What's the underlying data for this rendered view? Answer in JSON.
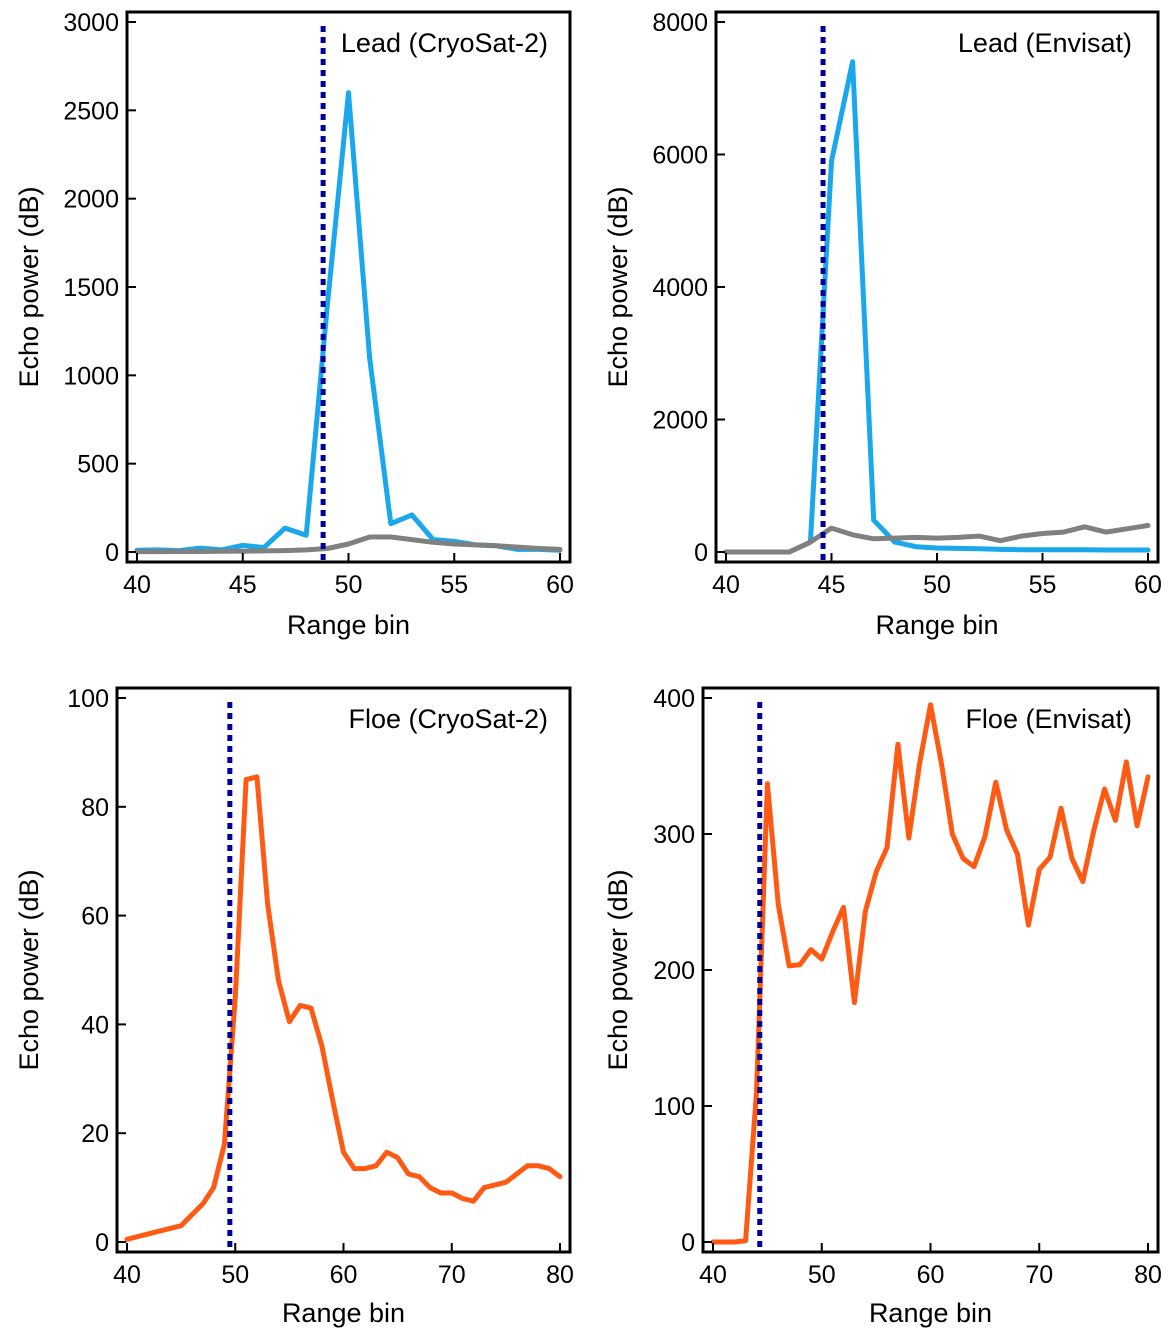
{
  "chart_data": [
    {
      "type": "line",
      "title": "Lead (CryoSat-2)",
      "xlabel": "Range bin",
      "ylabel": "Echo power (dB)",
      "xlim": [
        40,
        60
      ],
      "ylim": [
        0,
        3000
      ],
      "xticks": [
        40,
        45,
        50,
        55,
        60
      ],
      "yticks": [
        0,
        500,
        1000,
        1500,
        2000,
        2500,
        3000
      ],
      "reference_x": 48.8,
      "grid": false,
      "series": [
        {
          "color": "#1aa7ec",
          "x": [
            40,
            41,
            42,
            43,
            44,
            45,
            46,
            47,
            48,
            49,
            50,
            51,
            52,
            53,
            54,
            55,
            56,
            57,
            58,
            59,
            60
          ],
          "y": [
            10,
            12,
            8,
            22,
            12,
            38,
            25,
            135,
            95,
            1400,
            2600,
            1100,
            160,
            210,
            70,
            60,
            40,
            35,
            15,
            15,
            10
          ]
        },
        {
          "color": "#808080",
          "x": [
            40,
            41,
            42,
            43,
            44,
            45,
            46,
            47,
            48,
            49,
            50,
            51,
            52,
            53,
            54,
            55,
            56,
            57,
            58,
            59,
            60
          ],
          "y": [
            2,
            2,
            3,
            3,
            4,
            5,
            6,
            8,
            12,
            20,
            45,
            85,
            85,
            70,
            55,
            45,
            40,
            35,
            28,
            20,
            15
          ]
        }
      ]
    },
    {
      "type": "line",
      "title": "Lead (Envisat)",
      "xlabel": "Range bin",
      "ylabel": "Echo power (dB)",
      "xlim": [
        40,
        60
      ],
      "ylim": [
        0,
        8000
      ],
      "xticks": [
        40,
        45,
        50,
        55,
        60
      ],
      "yticks": [
        0,
        2000,
        4000,
        6000,
        8000
      ],
      "reference_x": 44.6,
      "grid": false,
      "series": [
        {
          "color": "#1aa7ec",
          "x": [
            40,
            41,
            42,
            43,
            44,
            45,
            46,
            47,
            48,
            49,
            50,
            51,
            52,
            53,
            54,
            55,
            56,
            57,
            58,
            59,
            60
          ],
          "y": [
            0,
            0,
            0,
            0,
            150,
            5900,
            7400,
            480,
            150,
            80,
            60,
            55,
            50,
            40,
            35,
            35,
            35,
            35,
            30,
            30,
            30
          ]
        },
        {
          "color": "#808080",
          "x": [
            40,
            41,
            42,
            43,
            44,
            45,
            46,
            47,
            48,
            49,
            50,
            51,
            52,
            53,
            54,
            55,
            56,
            57,
            58,
            59,
            60
          ],
          "y": [
            0,
            0,
            0,
            0,
            150,
            360,
            260,
            200,
            210,
            220,
            210,
            220,
            240,
            170,
            240,
            280,
            300,
            380,
            300,
            350,
            400
          ]
        }
      ]
    },
    {
      "type": "line",
      "title": "Floe (CryoSat-2)",
      "xlabel": "Range bin",
      "ylabel": "Echo power (dB)",
      "xlim": [
        40,
        80
      ],
      "ylim": [
        0,
        100
      ],
      "xticks": [
        40,
        50,
        60,
        70,
        80
      ],
      "yticks": [
        0,
        20,
        40,
        60,
        80,
        100
      ],
      "reference_x": 49.5,
      "grid": false,
      "series": [
        {
          "color": "#ff5a14",
          "x": [
            40,
            41,
            42,
            43,
            44,
            45,
            46,
            47,
            48,
            49,
            50,
            51,
            52,
            53,
            54,
            55,
            56,
            57,
            58,
            59,
            60,
            61,
            62,
            63,
            64,
            65,
            66,
            67,
            68,
            69,
            70,
            71,
            72,
            73,
            74,
            75,
            76,
            77,
            78,
            79,
            80
          ],
          "y": [
            0.5,
            1,
            1.5,
            2,
            2.5,
            3,
            5,
            7,
            10,
            18,
            45,
            85,
            85.5,
            62,
            48,
            40.5,
            43.5,
            43,
            36,
            26,
            16.5,
            13.5,
            13.5,
            14,
            16.5,
            15.5,
            12.5,
            12,
            10,
            9,
            9,
            8,
            7.5,
            10,
            10.5,
            11,
            12.5,
            14,
            14,
            13.5,
            12
          ]
        }
      ]
    },
    {
      "type": "line",
      "title": "Floe (Envisat)",
      "xlabel": "Range bin",
      "ylabel": "Echo power (dB)",
      "xlim": [
        40,
        80
      ],
      "ylim": [
        0,
        400
      ],
      "xticks": [
        40,
        50,
        60,
        70,
        80
      ],
      "yticks": [
        0,
        100,
        200,
        300,
        400
      ],
      "reference_x": 44.3,
      "grid": false,
      "series": [
        {
          "color": "#ff5a14",
          "x": [
            40,
            41,
            42,
            43,
            44,
            45,
            46,
            47,
            48,
            49,
            50,
            51,
            52,
            53,
            54,
            55,
            56,
            57,
            58,
            59,
            60,
            61,
            62,
            63,
            64,
            65,
            66,
            67,
            68,
            69,
            70,
            71,
            72,
            73,
            74,
            75,
            76,
            77,
            78,
            79,
            80
          ],
          "y": [
            0,
            0,
            0,
            1,
            110,
            337,
            248,
            203,
            204,
            215,
            208,
            228,
            246,
            176,
            243,
            272,
            290,
            366,
            297,
            352,
            395,
            352,
            300,
            282,
            276,
            298,
            338,
            303,
            285,
            233,
            274,
            283,
            319,
            282,
            265,
            302,
            333,
            310,
            353,
            306,
            342
          ]
        }
      ]
    }
  ]
}
